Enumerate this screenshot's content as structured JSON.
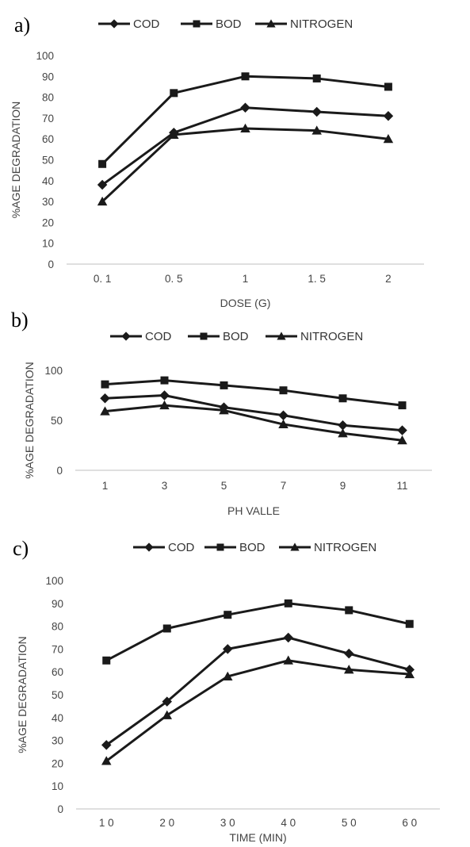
{
  "chart_data": [
    {
      "panel_label": "a)",
      "type": "line",
      "categories": [
        "0.1",
        "0.5",
        "1",
        "1.5",
        "2"
      ],
      "category_display": [
        "0. 1",
        "0. 5",
        "1",
        "1. 5",
        "2"
      ],
      "series": [
        {
          "name": "COD",
          "marker": "diamond",
          "values": [
            38,
            63,
            75,
            73,
            71
          ]
        },
        {
          "name": "BOD",
          "marker": "square",
          "values": [
            48,
            82,
            90,
            89,
            85
          ]
        },
        {
          "name": "NITROGEN",
          "marker": "triangle",
          "values": [
            30,
            62,
            65,
            64,
            60
          ]
        }
      ],
      "xlabel": "DOSE (G)",
      "ylabel": "%AGE DEGRADATION",
      "ylim": [
        0,
        100
      ],
      "yticks": [
        0,
        10,
        20,
        30,
        40,
        50,
        60,
        70,
        80,
        90,
        100
      ],
      "grid": false,
      "legend_position": "top"
    },
    {
      "panel_label": "b)",
      "type": "line",
      "categories": [
        "1",
        "3",
        "5",
        "7",
        "9",
        "11"
      ],
      "category_display": [
        "1",
        "3",
        "5",
        "7",
        "9",
        "11"
      ],
      "series": [
        {
          "name": "COD",
          "marker": "diamond",
          "values": [
            72,
            75,
            63,
            55,
            45,
            40
          ]
        },
        {
          "name": "BOD",
          "marker": "square",
          "values": [
            86,
            90,
            85,
            80,
            72,
            65
          ]
        },
        {
          "name": "NITROGEN",
          "marker": "triangle",
          "values": [
            59,
            65,
            60,
            46,
            37,
            30
          ]
        }
      ],
      "xlabel": "PH VALLE",
      "ylabel": "%AGE DEGRADATION",
      "ylim": [
        0,
        100
      ],
      "yticks": [
        0,
        50,
        100
      ],
      "grid": false,
      "legend_position": "top"
    },
    {
      "panel_label": "c)",
      "type": "line",
      "categories": [
        "10",
        "20",
        "30",
        "40",
        "50",
        "60"
      ],
      "category_display": [
        "1 0",
        "2 0",
        "3 0",
        "4 0",
        "5 0",
        "6 0"
      ],
      "series": [
        {
          "name": "COD",
          "marker": "diamond",
          "values": [
            28,
            47,
            70,
            75,
            68,
            61
          ]
        },
        {
          "name": "BOD",
          "marker": "square",
          "values": [
            65,
            79,
            85,
            90,
            87,
            81
          ]
        },
        {
          "name": "NITROGEN",
          "marker": "triangle",
          "values": [
            21,
            41,
            58,
            65,
            61,
            59
          ]
        }
      ],
      "xlabel": "TIME (MIN)",
      "ylabel": "%AGE DEGRADATION",
      "ylim": [
        0,
        100
      ],
      "yticks": [
        0,
        10,
        20,
        30,
        40,
        50,
        60,
        70,
        80,
        90,
        100
      ],
      "grid": false,
      "legend_position": "top"
    }
  ]
}
